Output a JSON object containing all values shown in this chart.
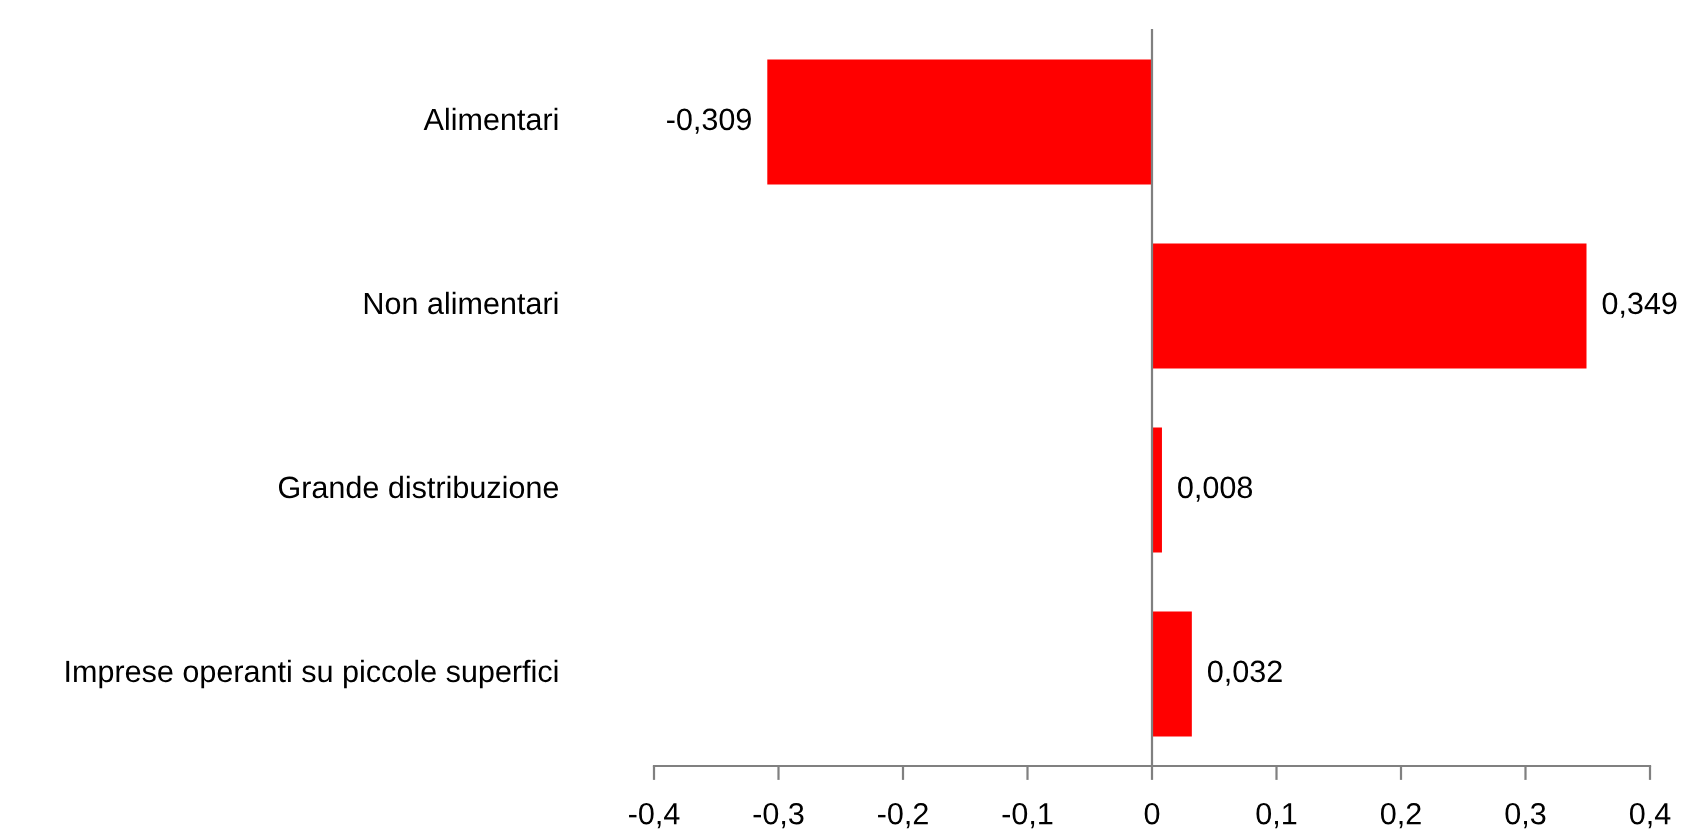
{
  "chart_data": {
    "type": "bar",
    "orientation": "horizontal",
    "categories": [
      "Alimentari",
      "Non alimentari",
      "Grande distribuzione",
      "Imprese operanti su piccole superfici"
    ],
    "values": [
      -0.309,
      0.349,
      0.008,
      0.032
    ],
    "color": "#ff0000",
    "value_labels": [
      "-0,309",
      "0,349",
      "0,008",
      "0,032"
    ],
    "xlim": [
      -0.4,
      0.4
    ],
    "xticks": [
      {
        "value": -0.4,
        "label": "-0,4"
      },
      {
        "value": -0.3,
        "label": "-0,3"
      },
      {
        "value": -0.2,
        "label": "-0,2"
      },
      {
        "value": -0.1,
        "label": "-0,1"
      },
      {
        "value": 0,
        "label": "0"
      },
      {
        "value": 0.1,
        "label": "0,1"
      },
      {
        "value": 0.2,
        "label": "0,2"
      },
      {
        "value": 0.3,
        "label": "0,3"
      },
      {
        "value": 0.4,
        "label": "0,4"
      }
    ],
    "legend": false
  }
}
